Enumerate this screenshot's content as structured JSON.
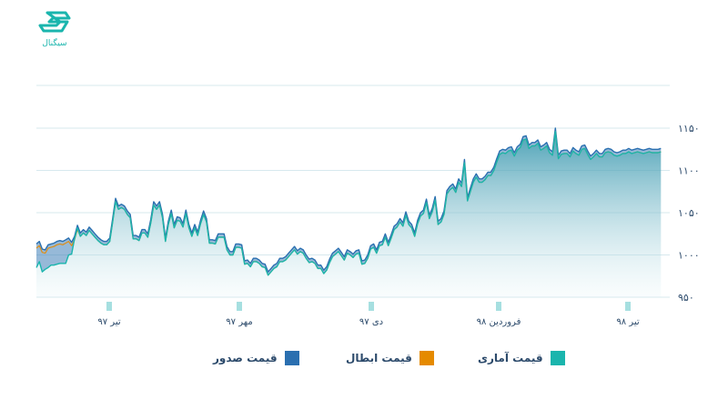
{
  "brand": {
    "logo_text": "سیگنال"
  },
  "chart_data": {
    "type": "area",
    "ylim": [
      950,
      1150
    ],
    "yticks": [
      950,
      1000,
      1050,
      1100,
      1150
    ],
    "ytick_labels": [
      "۹۵۰",
      "۱۰۰۰",
      "۱۰۵۰",
      "۱۱۰۰",
      "۱۱۵۰"
    ],
    "xticks": [
      {
        "i": 0,
        "label": "تیر ۹۷"
      },
      {
        "i": 50,
        "label": "مهر ۹۷"
      },
      {
        "i": 100,
        "label": "دی ۹۷"
      },
      {
        "i": 150,
        "label": "فروردین ۹۸"
      },
      {
        "i": 200,
        "label": "تیر ۹۸"
      }
    ],
    "x_start": 0,
    "x_end": 216,
    "series": [
      {
        "name": "قیمت صدور",
        "color": "#2a6fb0",
        "values": [
          1013,
          1016,
          1007,
          1006,
          1012,
          1013,
          1014,
          1016,
          1017,
          1016,
          1018,
          1020,
          1015,
          1022,
          1035,
          1026,
          1030,
          1027,
          1033,
          1029,
          1025,
          1021,
          1018,
          1016,
          1016,
          1020,
          1043,
          1067,
          1058,
          1060,
          1058,
          1052,
          1048,
          1023,
          1023,
          1021,
          1030,
          1030,
          1025,
          1042,
          1063,
          1058,
          1063,
          1048,
          1020,
          1040,
          1053,
          1036,
          1045,
          1044,
          1037,
          1053,
          1036,
          1026,
          1036,
          1027,
          1041,
          1052,
          1043,
          1018,
          1018,
          1017,
          1025,
          1025,
          1025,
          1010,
          1004,
          1004,
          1013,
          1013,
          1012,
          993,
          994,
          990,
          996,
          996,
          994,
          990,
          989,
          980,
          984,
          988,
          990,
          996,
          996,
          998,
          1002,
          1006,
          1010,
          1005,
          1008,
          1006,
          1000,
          995,
          996,
          994,
          988,
          988,
          982,
          986,
          995,
          1002,
          1005,
          1008,
          1003,
          998,
          1006,
          1004,
          1001,
          1005,
          1006,
          993,
          994,
          1000,
          1011,
          1013,
          1006,
          1015,
          1016,
          1025,
          1015,
          1024,
          1034,
          1037,
          1043,
          1038,
          1051,
          1040,
          1036,
          1026,
          1041,
          1050,
          1053,
          1066,
          1047,
          1055,
          1069,
          1040,
          1043,
          1052,
          1076,
          1081,
          1084,
          1078,
          1090,
          1085,
          1113,
          1068,
          1079,
          1090,
          1096,
          1090,
          1090,
          1093,
          1098,
          1098,
          1104,
          1114,
          1123,
          1125,
          1124,
          1127,
          1128,
          1121,
          1128,
          1131,
          1140,
          1141,
          1130,
          1133,
          1133,
          1136,
          1128,
          1130,
          1133,
          1125,
          1122,
          1150,
          1118,
          1123,
          1124,
          1124,
          1120,
          1127,
          1124,
          1122,
          1129,
          1130,
          1123,
          1117,
          1120,
          1124,
          1120,
          1120,
          1125,
          1126,
          1125,
          1122,
          1121,
          1122,
          1124,
          1124,
          1126,
          1124,
          1125,
          1126,
          1125,
          1124,
          1125,
          1126,
          1125,
          1125,
          1125,
          1126
        ]
      },
      {
        "name": "قیمت ابطال",
        "color": "#e58a00",
        "values": [
          1008,
          1011,
          1003,
          1002,
          1008,
          1009,
          1010,
          1012,
          1013,
          1012,
          1014,
          1016,
          1011,
          1018,
          1030,
          1022,
          1026,
          1023,
          1029,
          1025,
          1021,
          1017,
          1014,
          1012,
          1012,
          1016,
          1039,
          1063,
          1054,
          1056,
          1054,
          1048,
          1044,
          1019,
          1019,
          1017,
          1026,
          1026,
          1021,
          1038,
          1059,
          1054,
          1059,
          1044,
          1016,
          1036,
          1049,
          1032,
          1041,
          1040,
          1033,
          1049,
          1032,
          1022,
          1032,
          1023,
          1037,
          1048,
          1039,
          1014,
          1014,
          1013,
          1021,
          1021,
          1021,
          1006,
          1000,
          1000,
          1009,
          1009,
          1008,
          989,
          990,
          986,
          992,
          992,
          990,
          986,
          985,
          976,
          980,
          984,
          986,
          992,
          992,
          994,
          998,
          1002,
          1006,
          1001,
          1004,
          1002,
          996,
          991,
          992,
          990,
          984,
          984,
          978,
          982,
          991,
          998,
          1001,
          1004,
          999,
          994,
          1002,
          1000,
          997,
          1001,
          1002,
          989,
          990,
          996,
          1007,
          1009,
          1002,
          1011,
          1012,
          1021,
          1011,
          1020,
          1030,
          1033,
          1039,
          1034,
          1047,
          1036,
          1032,
          1022,
          1037,
          1046,
          1049,
          1062,
          1043,
          1051,
          1065,
          1036,
          1039,
          1048,
          1072,
          1077,
          1080,
          1074,
          1086,
          1081,
          1109,
          1064,
          1075,
          1086,
          1092,
          1086,
          1086,
          1089,
          1094,
          1094,
          1100,
          1110,
          1119,
          1121,
          1120,
          1123,
          1124,
          1117,
          1124,
          1127,
          1136,
          1137,
          1126,
          1129,
          1129,
          1132,
          1124,
          1126,
          1129,
          1121,
          1118,
          1146,
          1114,
          1119,
          1120,
          1120,
          1116,
          1123,
          1120,
          1118,
          1125,
          1126,
          1119,
          1113,
          1116,
          1120,
          1116,
          1116,
          1121,
          1122,
          1121,
          1118,
          1117,
          1118,
          1120,
          1120,
          1122,
          1120,
          1121,
          1122,
          1121,
          1120,
          1121,
          1122,
          1121,
          1121,
          1121,
          1122
        ]
      },
      {
        "name": "قیمت آماری",
        "color": "#1ab5ad",
        "values": [
          985,
          992,
          980,
          983,
          985,
          988,
          988,
          989,
          990,
          990,
          990,
          1000,
          1001,
          1019,
          1032,
          1022,
          1026,
          1023,
          1029,
          1025,
          1021,
          1017,
          1014,
          1012,
          1012,
          1016,
          1039,
          1063,
          1054,
          1056,
          1054,
          1048,
          1044,
          1019,
          1019,
          1017,
          1026,
          1026,
          1021,
          1038,
          1059,
          1054,
          1059,
          1044,
          1016,
          1036,
          1049,
          1032,
          1041,
          1040,
          1033,
          1049,
          1032,
          1022,
          1032,
          1023,
          1037,
          1048,
          1039,
          1014,
          1014,
          1013,
          1021,
          1021,
          1021,
          1006,
          1000,
          1000,
          1009,
          1009,
          1008,
          989,
          990,
          986,
          992,
          992,
          990,
          986,
          985,
          976,
          980,
          984,
          986,
          992,
          992,
          994,
          998,
          1002,
          1006,
          1001,
          1004,
          1002,
          996,
          991,
          992,
          990,
          984,
          984,
          978,
          982,
          991,
          998,
          1001,
          1004,
          999,
          994,
          1002,
          1000,
          997,
          1001,
          1002,
          989,
          990,
          996,
          1007,
          1009,
          1002,
          1011,
          1012,
          1021,
          1011,
          1020,
          1030,
          1033,
          1039,
          1034,
          1047,
          1036,
          1032,
          1022,
          1037,
          1046,
          1049,
          1062,
          1043,
          1051,
          1065,
          1036,
          1039,
          1048,
          1072,
          1077,
          1080,
          1074,
          1086,
          1081,
          1109,
          1064,
          1075,
          1086,
          1092,
          1086,
          1086,
          1089,
          1094,
          1094,
          1100,
          1110,
          1119,
          1121,
          1120,
          1123,
          1124,
          1117,
          1124,
          1127,
          1136,
          1137,
          1126,
          1129,
          1129,
          1132,
          1124,
          1126,
          1129,
          1121,
          1118,
          1146,
          1114,
          1119,
          1120,
          1120,
          1116,
          1123,
          1120,
          1118,
          1125,
          1126,
          1119,
          1113,
          1116,
          1120,
          1116,
          1116,
          1121,
          1122,
          1121,
          1118,
          1117,
          1118,
          1120,
          1120,
          1122,
          1120,
          1121,
          1122,
          1121,
          1120,
          1121,
          1122,
          1121,
          1121,
          1121,
          1122
        ]
      }
    ]
  }
}
